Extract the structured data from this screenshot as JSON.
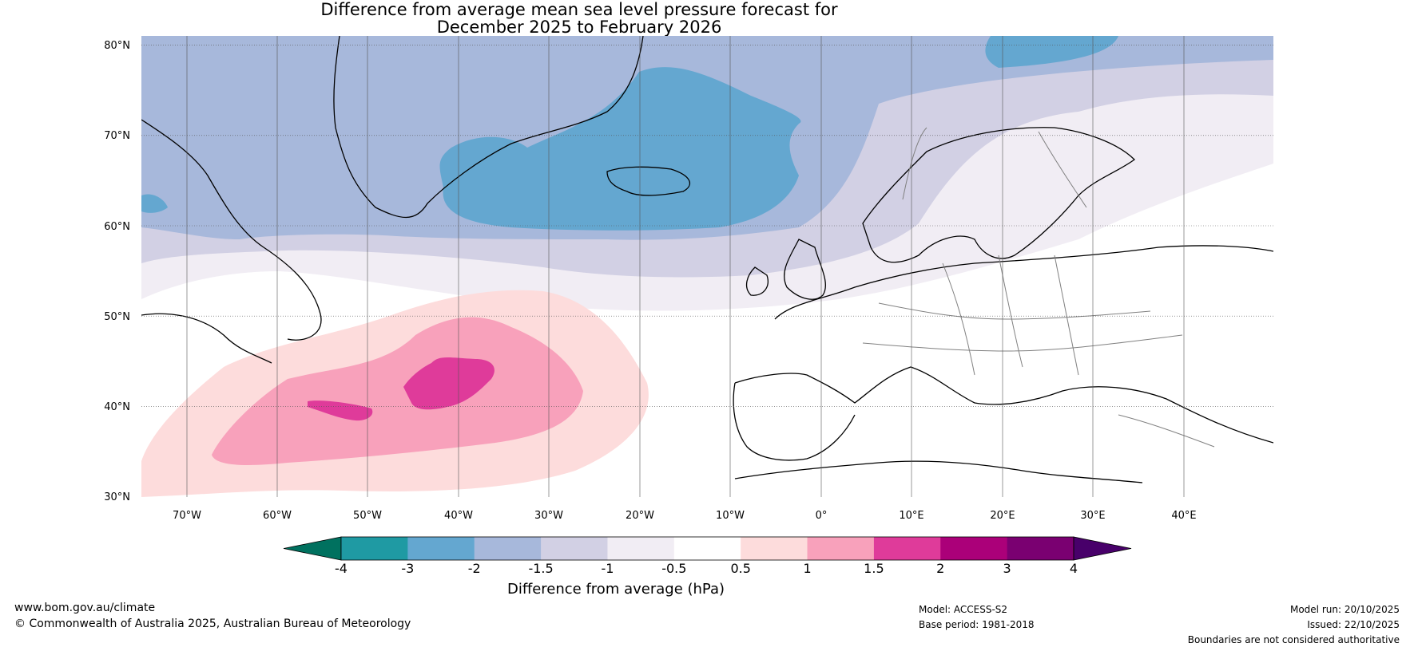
{
  "title": {
    "line1": "Difference from average mean sea level pressure forecast for",
    "line2": "December 2025 to February 2026"
  },
  "map": {
    "region": "North Atlantic and Europe",
    "lat_labels": [
      "80°N",
      "70°N",
      "60°N",
      "50°N",
      "40°N",
      "30°N"
    ],
    "lon_labels": [
      "70°W",
      "60°W",
      "50°W",
      "40°W",
      "30°W",
      "20°W",
      "10°W",
      "0°",
      "10°E",
      "20°E",
      "30°E",
      "40°E"
    ]
  },
  "colorbar": {
    "ticks": [
      "-4",
      "-3",
      "-2",
      "-1.5",
      "-1",
      "-0.5",
      "0.5",
      "1",
      "1.5",
      "2",
      "3",
      "4"
    ],
    "colors": [
      "#00715f",
      "#1f9aa3",
      "#64a7d0",
      "#a7b8db",
      "#d2d0e4",
      "#f1edf4",
      "#ffffff",
      "#fddcdc",
      "#f8a1bb",
      "#df3b9a",
      "#ab0079",
      "#7a0071",
      "#48006a"
    ],
    "label": "Difference from average (hPa)"
  },
  "footer": {
    "url": "www.bom.gov.au/climate",
    "copyright": "© Commonwealth of Australia 2025, Australian Bureau of Meteorology",
    "model": "Model: ACCESS-S2",
    "base_period": "Base period: 1981-2018",
    "model_run": "Model run: 20/10/2025",
    "issued": "Issued: 22/10/2025",
    "disclaimer": "Boundaries are not considered authoritative"
  }
}
